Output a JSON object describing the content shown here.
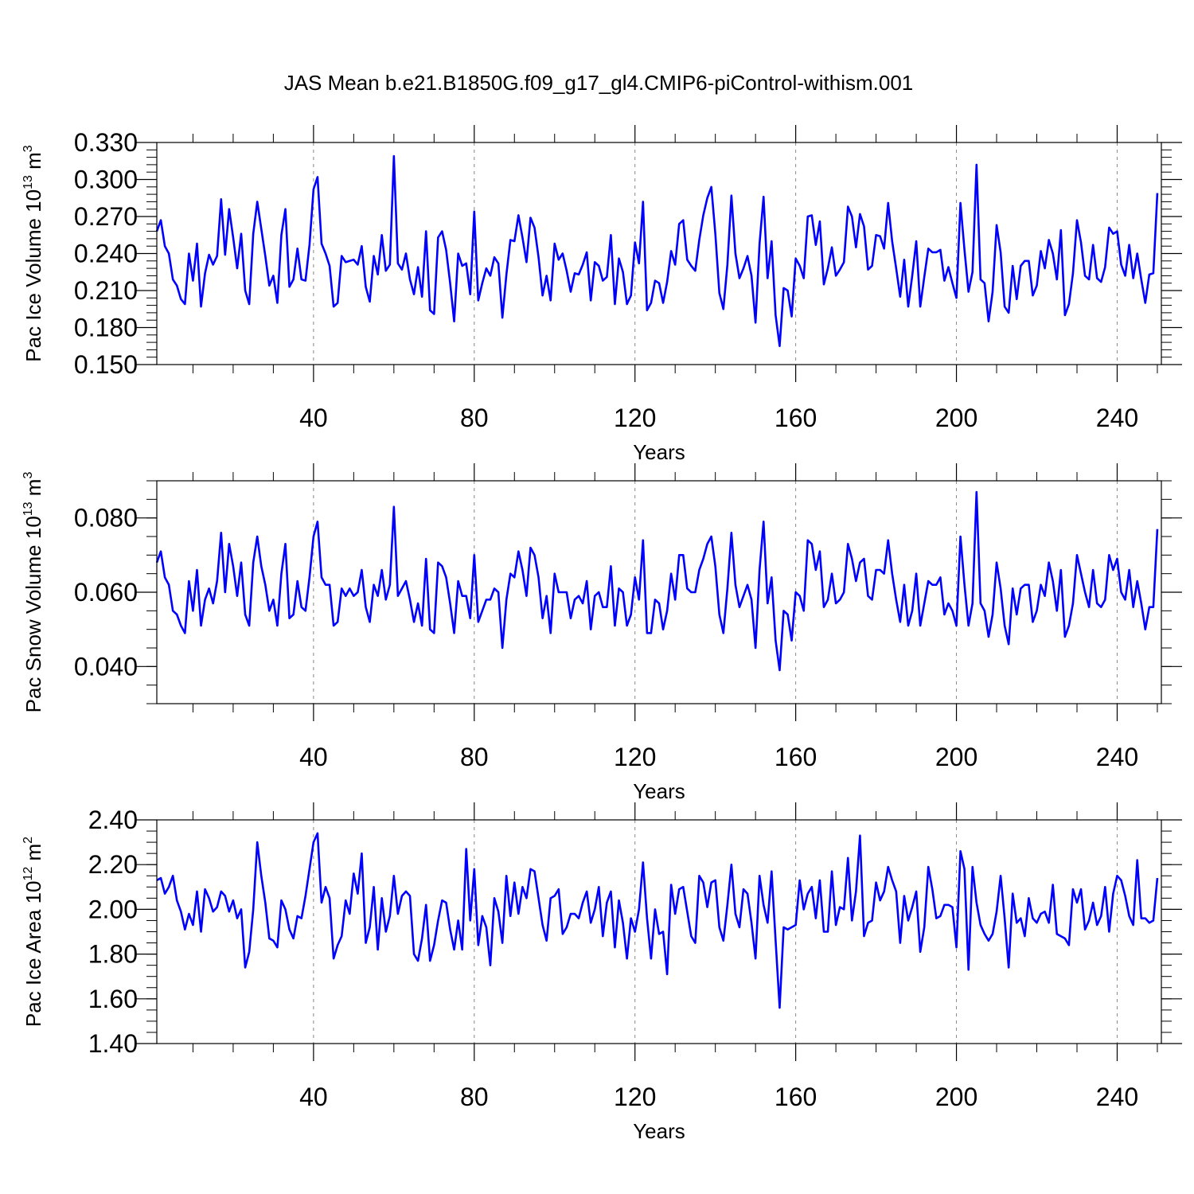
{
  "figure_title": "JAS Mean b.e21.B1850G.f09_g17_gl4.CMIP6-piControl-withism.001",
  "series_color": "#0000ff",
  "grid_color": "#888888",
  "chart_data": [
    {
      "type": "line",
      "title": "JAS Mean b.e21.B1850G.f09_g17_gl4.CMIP6-piControl-withism.001",
      "xlabel": "Years",
      "ylabel_main": "Pac Ice Volume 10",
      "ylabel_exp": "13",
      "ylabel_unit": " m",
      "ylabel_unit_exp": "3",
      "xlim": [
        1,
        251
      ],
      "ylim": [
        0.15,
        0.33
      ],
      "xticks": [
        40,
        80,
        120,
        160,
        200,
        240
      ],
      "yticks": [
        0.15,
        0.18,
        0.21,
        0.24,
        0.27,
        0.3,
        0.33
      ],
      "ytick_labels": [
        "0.150",
        "0.180",
        "0.210",
        "0.240",
        "0.270",
        "0.300",
        "0.330"
      ],
      "yminor_step": 0.006,
      "grid": "vertical dashed at major x ticks",
      "series": [
        {
          "name": "Pac Ice Volume",
          "x_start": 1,
          "values": [
            0.258,
            0.267,
            0.246,
            0.24,
            0.219,
            0.214,
            0.203,
            0.199,
            0.24,
            0.218,
            0.248,
            0.197,
            0.224,
            0.239,
            0.231,
            0.238,
            0.284,
            0.239,
            0.276,
            0.253,
            0.228,
            0.256,
            0.21,
            0.199,
            0.256,
            0.282,
            0.26,
            0.238,
            0.214,
            0.222,
            0.2,
            0.255,
            0.276,
            0.213,
            0.219,
            0.244,
            0.219,
            0.218,
            0.247,
            0.292,
            0.302,
            0.248,
            0.24,
            0.23,
            0.197,
            0.2,
            0.238,
            0.233,
            0.234,
            0.235,
            0.231,
            0.246,
            0.213,
            0.201,
            0.238,
            0.223,
            0.255,
            0.226,
            0.231,
            0.319,
            0.232,
            0.227,
            0.24,
            0.219,
            0.207,
            0.229,
            0.205,
            0.258,
            0.194,
            0.191,
            0.253,
            0.258,
            0.243,
            0.216,
            0.185,
            0.24,
            0.23,
            0.232,
            0.207,
            0.274,
            0.202,
            0.216,
            0.228,
            0.222,
            0.237,
            0.232,
            0.188,
            0.223,
            0.251,
            0.25,
            0.271,
            0.253,
            0.233,
            0.269,
            0.261,
            0.237,
            0.206,
            0.222,
            0.202,
            0.248,
            0.235,
            0.24,
            0.226,
            0.209,
            0.224,
            0.223,
            0.231,
            0.241,
            0.202,
            0.233,
            0.23,
            0.218,
            0.221,
            0.255,
            0.199,
            0.236,
            0.225,
            0.199,
            0.206,
            0.249,
            0.232,
            0.282,
            0.194,
            0.2,
            0.218,
            0.216,
            0.2,
            0.217,
            0.242,
            0.231,
            0.264,
            0.267,
            0.235,
            0.23,
            0.226,
            0.251,
            0.271,
            0.285,
            0.294,
            0.256,
            0.208,
            0.195,
            0.231,
            0.287,
            0.24,
            0.22,
            0.228,
            0.238,
            0.222,
            0.184,
            0.248,
            0.286,
            0.22,
            0.25,
            0.19,
            0.165,
            0.212,
            0.21,
            0.189,
            0.236,
            0.23,
            0.22,
            0.27,
            0.271,
            0.247,
            0.266,
            0.215,
            0.228,
            0.245,
            0.222,
            0.227,
            0.233,
            0.278,
            0.27,
            0.245,
            0.272,
            0.262,
            0.227,
            0.23,
            0.255,
            0.254,
            0.244,
            0.281,
            0.25,
            0.228,
            0.205,
            0.235,
            0.197,
            0.222,
            0.25,
            0.197,
            0.221,
            0.244,
            0.241,
            0.241,
            0.243,
            0.218,
            0.229,
            0.216,
            0.204,
            0.281,
            0.243,
            0.209,
            0.225,
            0.312,
            0.219,
            0.216,
            0.185,
            0.209,
            0.263,
            0.241,
            0.197,
            0.192,
            0.23,
            0.203,
            0.23,
            0.234,
            0.234,
            0.206,
            0.214,
            0.242,
            0.228,
            0.251,
            0.24,
            0.219,
            0.259,
            0.19,
            0.199,
            0.224,
            0.267,
            0.249,
            0.222,
            0.219,
            0.247,
            0.22,
            0.217,
            0.229,
            0.261,
            0.256,
            0.258,
            0.231,
            0.222,
            0.247,
            0.22,
            0.24,
            0.219,
            0.2,
            0.223,
            0.224,
            0.289
          ]
        }
      ]
    },
    {
      "type": "line",
      "xlabel": "Years",
      "ylabel_main": "Pac Snow Volume 10",
      "ylabel_exp": "13",
      "ylabel_unit": " m",
      "ylabel_unit_exp": "3",
      "xlim": [
        1,
        251
      ],
      "ylim": [
        0.03,
        0.09
      ],
      "xticks": [
        40,
        80,
        120,
        160,
        200,
        240
      ],
      "yticks": [
        0.04,
        0.06,
        0.08
      ],
      "ytick_labels": [
        "0.040",
        "0.060",
        "0.080"
      ],
      "yminor_step": 0.005,
      "grid": "vertical dashed at major x ticks",
      "series": [
        {
          "name": "Pac Snow Volume",
          "x_start": 1,
          "values": [
            0.068,
            0.071,
            0.064,
            0.062,
            0.055,
            0.054,
            0.051,
            0.049,
            0.063,
            0.055,
            0.066,
            0.051,
            0.058,
            0.061,
            0.057,
            0.063,
            0.076,
            0.06,
            0.073,
            0.067,
            0.059,
            0.068,
            0.054,
            0.051,
            0.068,
            0.075,
            0.067,
            0.062,
            0.055,
            0.058,
            0.051,
            0.065,
            0.073,
            0.053,
            0.054,
            0.063,
            0.056,
            0.055,
            0.064,
            0.075,
            0.079,
            0.064,
            0.062,
            0.062,
            0.051,
            0.052,
            0.061,
            0.059,
            0.061,
            0.059,
            0.06,
            0.066,
            0.056,
            0.052,
            0.062,
            0.059,
            0.066,
            0.058,
            0.062,
            0.083,
            0.059,
            0.061,
            0.063,
            0.058,
            0.052,
            0.057,
            0.051,
            0.069,
            0.05,
            0.049,
            0.068,
            0.067,
            0.064,
            0.057,
            0.049,
            0.063,
            0.059,
            0.059,
            0.053,
            0.07,
            0.052,
            0.055,
            0.058,
            0.058,
            0.061,
            0.06,
            0.045,
            0.058,
            0.065,
            0.064,
            0.071,
            0.066,
            0.059,
            0.072,
            0.07,
            0.064,
            0.053,
            0.059,
            0.049,
            0.065,
            0.06,
            0.06,
            0.06,
            0.053,
            0.058,
            0.059,
            0.057,
            0.063,
            0.05,
            0.059,
            0.06,
            0.056,
            0.056,
            0.067,
            0.051,
            0.061,
            0.06,
            0.051,
            0.054,
            0.064,
            0.058,
            0.074,
            0.049,
            0.049,
            0.058,
            0.057,
            0.05,
            0.055,
            0.065,
            0.058,
            0.07,
            0.07,
            0.061,
            0.06,
            0.06,
            0.066,
            0.069,
            0.073,
            0.075,
            0.067,
            0.054,
            0.049,
            0.061,
            0.076,
            0.062,
            0.056,
            0.059,
            0.062,
            0.058,
            0.045,
            0.066,
            0.079,
            0.057,
            0.064,
            0.047,
            0.039,
            0.055,
            0.054,
            0.047,
            0.06,
            0.059,
            0.055,
            0.074,
            0.073,
            0.066,
            0.071,
            0.056,
            0.058,
            0.065,
            0.057,
            0.058,
            0.06,
            0.073,
            0.069,
            0.063,
            0.068,
            0.069,
            0.059,
            0.058,
            0.066,
            0.066,
            0.065,
            0.074,
            0.065,
            0.058,
            0.052,
            0.062,
            0.051,
            0.055,
            0.065,
            0.051,
            0.057,
            0.063,
            0.062,
            0.062,
            0.064,
            0.054,
            0.057,
            0.055,
            0.051,
            0.075,
            0.062,
            0.051,
            0.057,
            0.087,
            0.057,
            0.055,
            0.048,
            0.054,
            0.068,
            0.061,
            0.051,
            0.046,
            0.061,
            0.054,
            0.061,
            0.062,
            0.062,
            0.052,
            0.055,
            0.062,
            0.059,
            0.068,
            0.063,
            0.055,
            0.066,
            0.048,
            0.051,
            0.057,
            0.07,
            0.065,
            0.06,
            0.056,
            0.066,
            0.057,
            0.056,
            0.058,
            0.07,
            0.066,
            0.069,
            0.06,
            0.058,
            0.066,
            0.056,
            0.063,
            0.057,
            0.05,
            0.056,
            0.056,
            0.077
          ]
        }
      ]
    },
    {
      "type": "line",
      "xlabel": "Years",
      "ylabel_main": "Pac Ice Area 10",
      "ylabel_exp": "12",
      "ylabel_unit": " m",
      "ylabel_unit_exp": "2",
      "xlim": [
        1,
        251
      ],
      "ylim": [
        1.4,
        2.4
      ],
      "xticks": [
        40,
        80,
        120,
        160,
        200,
        240
      ],
      "yticks": [
        1.4,
        1.6,
        1.8,
        2.0,
        2.2,
        2.4
      ],
      "ytick_labels": [
        "1.40",
        "1.60",
        "1.80",
        "2.00",
        "2.20",
        "2.40"
      ],
      "yminor_step": 0.05,
      "grid": "vertical dashed at major x ticks",
      "series": [
        {
          "name": "Pac Ice Area",
          "x_start": 1,
          "values": [
            2.13,
            2.14,
            2.07,
            2.1,
            2.15,
            2.04,
            1.99,
            1.91,
            1.98,
            1.93,
            2.08,
            1.9,
            2.09,
            2.05,
            1.99,
            2.01,
            2.08,
            2.06,
            1.99,
            2.04,
            1.96,
            2.0,
            1.74,
            1.81,
            2.0,
            2.3,
            2.15,
            2.03,
            1.87,
            1.86,
            1.83,
            2.04,
            2.0,
            1.91,
            1.87,
            1.97,
            1.96,
            2.06,
            2.18,
            2.3,
            2.34,
            2.03,
            2.1,
            2.05,
            1.78,
            1.84,
            1.88,
            2.04,
            1.98,
            2.16,
            2.07,
            2.25,
            1.85,
            1.92,
            2.1,
            1.82,
            2.05,
            1.9,
            1.97,
            2.15,
            1.98,
            2.06,
            2.08,
            2.06,
            1.8,
            1.77,
            1.87,
            2.02,
            1.77,
            1.84,
            1.95,
            2.04,
            2.03,
            1.91,
            1.82,
            1.95,
            1.82,
            2.27,
            1.95,
            2.18,
            1.84,
            1.97,
            1.92,
            1.75,
            2.05,
            1.99,
            1.85,
            2.15,
            1.97,
            2.12,
            1.98,
            2.1,
            2.05,
            2.18,
            2.17,
            2.05,
            1.93,
            1.86,
            2.05,
            2.06,
            2.09,
            1.89,
            1.92,
            1.98,
            1.98,
            1.96,
            2.03,
            2.08,
            1.94,
            2.0,
            2.1,
            1.88,
            2.03,
            2.08,
            1.83,
            2.04,
            1.94,
            1.78,
            1.96,
            1.9,
            2.0,
            2.21,
            1.96,
            1.78,
            2.0,
            1.89,
            1.9,
            1.71,
            2.11,
            1.98,
            2.09,
            2.1,
            1.99,
            1.88,
            1.85,
            2.15,
            2.12,
            2.01,
            2.12,
            2.13,
            1.92,
            1.86,
            2.02,
            2.2,
            1.98,
            1.92,
            2.09,
            2.07,
            1.94,
            1.78,
            2.15,
            2.02,
            1.94,
            2.17,
            1.86,
            1.56,
            1.92,
            1.91,
            1.92,
            1.93,
            2.13,
            2.0,
            2.07,
            2.1,
            1.96,
            2.13,
            1.9,
            1.9,
            2.17,
            1.93,
            2.01,
            2.0,
            2.23,
            1.95,
            2.08,
            2.33,
            1.88,
            1.94,
            1.95,
            2.12,
            2.04,
            2.08,
            2.19,
            2.13,
            2.08,
            1.85,
            2.06,
            1.95,
            2.01,
            2.08,
            1.81,
            1.92,
            2.19,
            2.09,
            1.96,
            1.97,
            2.02,
            2.02,
            2.01,
            1.83,
            2.26,
            2.18,
            1.73,
            2.19,
            2.03,
            1.93,
            1.89,
            1.86,
            1.89,
            1.99,
            2.15,
            1.96,
            1.74,
            2.07,
            1.94,
            1.96,
            1.88,
            2.05,
            1.96,
            1.94,
            1.98,
            1.99,
            1.94,
            2.11,
            1.89,
            1.88,
            1.87,
            1.84,
            2.09,
            2.03,
            2.09,
            1.91,
            1.95,
            2.03,
            1.93,
            1.97,
            2.1,
            1.9,
            2.07,
            2.15,
            2.13,
            2.06,
            1.97,
            1.93,
            2.22,
            1.96,
            1.96,
            1.94,
            1.95,
            2.14
          ]
        }
      ]
    }
  ]
}
